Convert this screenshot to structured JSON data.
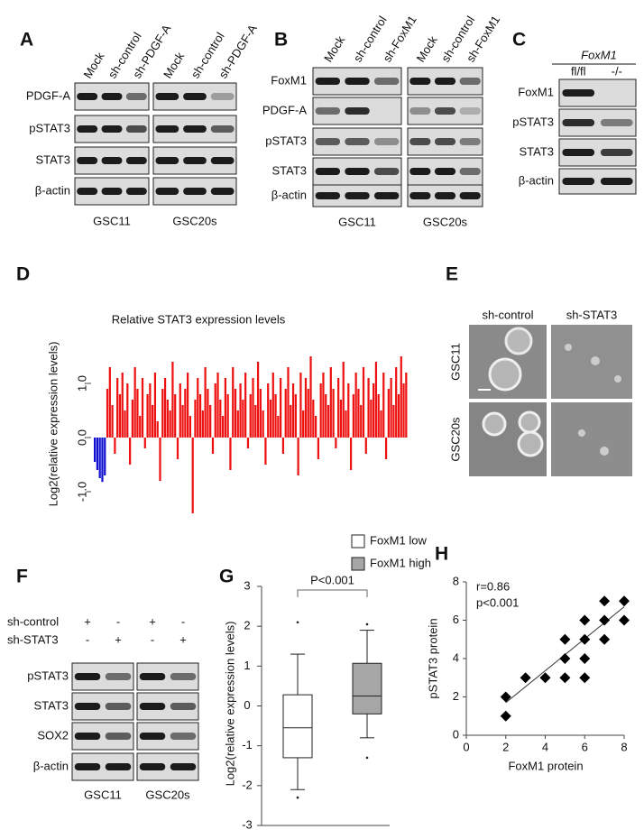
{
  "panels": {
    "A": {
      "letter": "A",
      "lanes": [
        "Mock",
        "sh-control",
        "sh-PDGF-A",
        "Mock",
        "sh-control",
        "sh-PDGF-A"
      ],
      "rows": [
        "PDGF-A",
        "pSTAT3",
        "STAT3",
        "β-actin"
      ],
      "groups": [
        "GSC11",
        "GSC20s"
      ]
    },
    "B": {
      "letter": "B",
      "lanes": [
        "Mock",
        "sh-control",
        "sh-FoxM1",
        "Mock",
        "sh-control",
        "sh-FoxM1"
      ],
      "rows": [
        "FoxM1",
        "PDGF-A",
        "pSTAT3",
        "STAT3",
        "β-actin"
      ],
      "groups": [
        "GSC11",
        "GSC20s"
      ]
    },
    "C": {
      "letter": "C",
      "genotype": "FoxM1",
      "lanes": [
        "fl/fl",
        "-/-"
      ],
      "rows": [
        "FoxM1",
        "pSTAT3",
        "STAT3",
        "β-actin"
      ]
    },
    "D": {
      "letter": "D"
    },
    "E": {
      "letter": "E",
      "columns": [
        "sh-control",
        "sh-STAT3"
      ],
      "rows": [
        "GSC11",
        "GSC20s"
      ]
    },
    "F": {
      "letter": "F",
      "conditions": [
        {
          "name": "sh-control",
          "signs": [
            "+",
            "-",
            "+",
            "-"
          ]
        },
        {
          "name": "sh-STAT3",
          "signs": [
            "-",
            "+",
            "-",
            "+"
          ]
        }
      ],
      "rows": [
        "pSTAT3",
        "STAT3",
        "SOX2",
        "β-actin"
      ],
      "groups": [
        "GSC11",
        "GSC20s"
      ]
    },
    "G": {
      "letter": "G"
    },
    "H": {
      "letter": "H"
    }
  },
  "chart_data": [
    {
      "type": "bar",
      "title": "Relative STAT3 expression levels",
      "y_label": "Log2(relative expression levels)",
      "ylim": [
        -1.6,
        1.6
      ],
      "yticks": [
        {
          "value": -1,
          "label": "-1.0"
        },
        {
          "value": 0,
          "label": "0.0"
        },
        {
          "value": 1,
          "label": "1.0"
        }
      ],
      "series": [
        {
          "color": "#1010d0",
          "values": [
            -0.45,
            -0.6,
            -0.75,
            -0.82,
            -0.7
          ]
        },
        {
          "color": "#ee1111",
          "values": [
            0.9,
            1.3,
            0.6,
            -0.3,
            1.1,
            0.8,
            1.2,
            0.5,
            1.0,
            -0.5,
            0.7,
            1.3,
            0.9,
            0.4,
            1.1,
            -0.2,
            0.8,
            1.0,
            0.6,
            1.2,
            0.3,
            -0.8,
            0.9,
            1.1,
            0.7,
            0.5,
            1.4,
            0.8,
            -0.4,
            1.0,
            0.6,
            0.9,
            1.2,
            0.4,
            -1.4,
            0.7,
            1.1,
            0.8,
            0.5,
            1.3,
            0.9,
            0.6,
            -0.3,
            1.0,
            1.2,
            0.7,
            0.4,
            1.1,
            0.8,
            -0.6,
            1.3,
            0.9,
            0.5,
            1.0,
            0.7,
            1.2,
            -0.2,
            0.8,
            1.1,
            0.6,
            1.4,
            0.9,
            0.5,
            -0.5,
            1.0,
            0.7,
            1.2,
            0.8,
            0.4,
            1.1,
            -0.3,
            0.9,
            1.3,
            0.6,
            1.0,
            0.8,
            -0.7,
            1.2,
            0.5,
            1.1,
            0.9,
            1.5,
            0.7,
            0.4,
            -0.4,
            1.0,
            1.2,
            0.8,
            0.6,
            1.3,
            0.9,
            -0.2,
            1.1,
            0.7,
            1.4,
            0.5,
            1.0,
            -0.6,
            0.8,
            1.2,
            0.9,
            0.6,
            1.3,
            -0.3,
            1.1,
            0.7,
            1.0,
            1.4,
            0.8,
            0.5,
            1.2,
            -0.4,
            0.9,
            1.1,
            0.6,
            1.3,
            0.8,
            1.5,
            1.0,
            1.2
          ]
        }
      ]
    },
    {
      "type": "box",
      "y_label": "Log2(relative expression levels)",
      "annotation": "P<0.001",
      "ylim": [
        -3,
        3
      ],
      "yticks": [
        -3,
        -2,
        -1,
        0,
        1,
        2,
        3
      ],
      "series": [
        {
          "name": "FoxM1 low",
          "color": "#ffffff",
          "low": -2.1,
          "q1": -1.3,
          "median": -0.55,
          "q3": 0.28,
          "high": 1.3,
          "outliers": [
            2.1,
            -2.3
          ]
        },
        {
          "name": "FoxM1 high",
          "color": "#a6a6a6",
          "low": -0.8,
          "q1": -0.2,
          "median": 0.25,
          "q3": 1.07,
          "high": 1.9,
          "outliers": [
            2.05,
            -1.3
          ]
        }
      ]
    },
    {
      "type": "scatter",
      "x_label": "FoxM1 protein",
      "y_label": "pSTAT3 protein",
      "annotations": [
        "r=0.86",
        "p<0.001"
      ],
      "xlim": [
        0,
        8
      ],
      "xticks": [
        0,
        2,
        4,
        6,
        8
      ],
      "ylim": [
        0,
        8
      ],
      "yticks": [
        0,
        2,
        4,
        6,
        8
      ],
      "x": [
        2,
        2,
        3,
        4,
        5,
        5,
        5,
        6,
        6,
        6,
        6,
        7,
        7,
        7,
        8,
        8
      ],
      "y": [
        1,
        2,
        3,
        3,
        3,
        4,
        5,
        3,
        4,
        5,
        6,
        5,
        6,
        7,
        6,
        7
      ],
      "fit": {
        "x": [
          2,
          8
        ],
        "y": [
          1.7,
          6.7
        ]
      }
    }
  ]
}
